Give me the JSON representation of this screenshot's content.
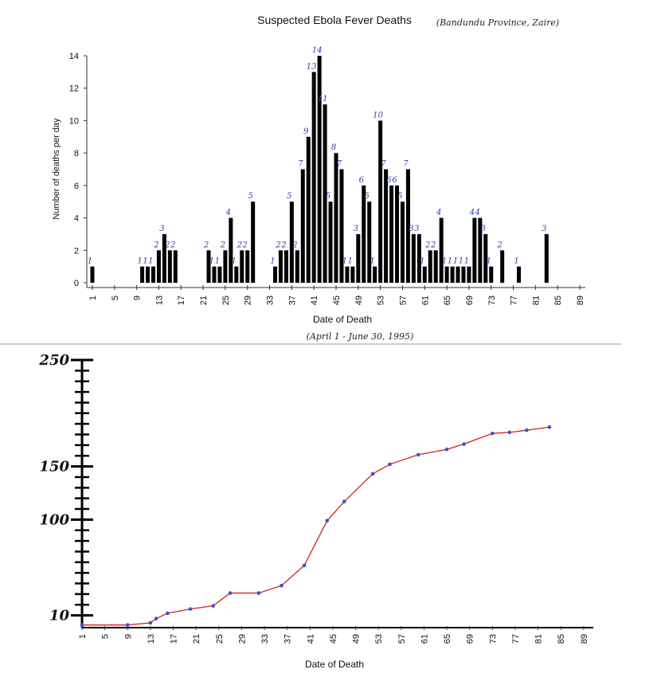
{
  "chart_data": [
    {
      "type": "bar",
      "title": "Suspected Ebola Fever Deaths",
      "annotation": "(Bandundu Province, Zaire)",
      "x_annotation": "(April 1 - June 30, 1995)",
      "ylabel": "Number of deaths per day",
      "xlabel": "Date of Death",
      "color": "#000000",
      "label_color": "#2b3fa8",
      "x": [
        1,
        10,
        11,
        12,
        13,
        14,
        15,
        16,
        22,
        23,
        24,
        25,
        26,
        27,
        28,
        29,
        30,
        34,
        35,
        36,
        37,
        38,
        39,
        40,
        41,
        42,
        43,
        44,
        45,
        46,
        47,
        48,
        49,
        50,
        51,
        52,
        53,
        54,
        55,
        56,
        57,
        58,
        59,
        60,
        61,
        62,
        63,
        64,
        65,
        66,
        67,
        68,
        69,
        70,
        71,
        72,
        73,
        75,
        78,
        83
      ],
      "values": [
        1,
        1,
        1,
        1,
        2,
        3,
        2,
        2,
        2,
        1,
        1,
        2,
        4,
        1,
        2,
        2,
        5,
        1,
        2,
        2,
        5,
        2,
        7,
        9,
        13,
        14,
        11,
        5,
        8,
        7,
        1,
        1,
        3,
        6,
        5,
        1,
        10,
        7,
        6,
        6,
        5,
        7,
        3,
        3,
        1,
        2,
        2,
        4,
        1,
        1,
        1,
        1,
        1,
        4,
        4,
        3,
        1,
        2,
        1,
        3
      ],
      "xlim": [
        0,
        90
      ],
      "ylim": [
        0,
        14
      ],
      "yticks": [
        0,
        2,
        4,
        6,
        8,
        10,
        12,
        14
      ],
      "xticks": [
        1,
        5,
        9,
        13,
        17,
        21,
        25,
        29,
        33,
        37,
        41,
        45,
        49,
        53,
        57,
        61,
        65,
        69,
        73,
        77,
        81,
        85,
        89
      ]
    },
    {
      "type": "line",
      "xlabel": "Date of Death",
      "color": "#d42020",
      "marker_color": "#3a4fd8",
      "x": [
        1,
        9,
        13,
        14,
        16,
        20,
        24,
        27,
        32,
        36,
        40,
        44,
        47,
        52,
        55,
        60,
        65,
        68,
        73,
        76,
        79,
        83
      ],
      "values": [
        1,
        1,
        3,
        7,
        12,
        16,
        19,
        31,
        31,
        38,
        57,
        99,
        117,
        143,
        152,
        161,
        166,
        171,
        181,
        182,
        184,
        187
      ],
      "xlim": [
        1,
        90
      ],
      "ylim": [
        0,
        250
      ],
      "yticks": [
        10,
        100,
        150,
        250
      ],
      "minor_yticks": [
        10,
        20,
        30,
        40,
        50,
        60,
        70,
        80,
        90,
        100,
        110,
        120,
        130,
        140,
        150,
        160,
        170,
        180,
        190,
        200,
        210,
        220,
        230,
        240,
        250
      ],
      "xticks": [
        1,
        5,
        9,
        13,
        17,
        21,
        25,
        29,
        33,
        37,
        41,
        45,
        49,
        53,
        57,
        61,
        65,
        69,
        73,
        77,
        81,
        85,
        89
      ]
    }
  ]
}
